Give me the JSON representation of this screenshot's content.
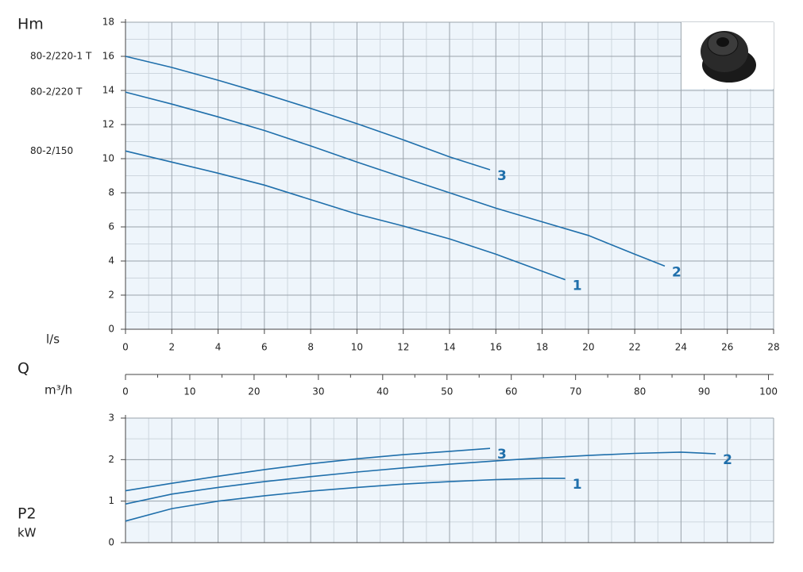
{
  "chart_data": [
    {
      "type": "line",
      "y_label": "Hm",
      "x_label": "l/s",
      "q_label": "Q",
      "x2_label": "m³/h",
      "xlim": [
        0,
        28
      ],
      "xticks": [
        0,
        2,
        4,
        6,
        8,
        10,
        12,
        14,
        16,
        18,
        20,
        22,
        24,
        26,
        28
      ],
      "ylim": [
        0,
        18
      ],
      "yticks": [
        0,
        2,
        4,
        6,
        8,
        10,
        12,
        14,
        16,
        18
      ],
      "x2lim": [
        0,
        100.8
      ],
      "x2ticks": [
        0,
        10,
        20,
        30,
        40,
        50,
        60,
        70,
        80,
        90,
        100
      ],
      "grid": true,
      "series": [
        {
          "name": "1",
          "model": "80-2/150",
          "color": "#1f6fab",
          "x": [
            0,
            2,
            4,
            6,
            8,
            10,
            12,
            14,
            16,
            18,
            19
          ],
          "values": [
            10.45,
            9.8,
            9.15,
            8.45,
            7.6,
            6.75,
            6.05,
            5.3,
            4.4,
            3.4,
            2.9
          ]
        },
        {
          "name": "2",
          "model": "80-2/220 T",
          "color": "#1f6fab",
          "x": [
            0,
            2,
            4,
            6,
            8,
            10,
            12,
            14,
            16,
            18,
            20,
            22,
            23.3
          ],
          "values": [
            13.9,
            13.2,
            12.45,
            11.65,
            10.75,
            9.8,
            8.9,
            8.0,
            7.1,
            6.3,
            5.5,
            4.4,
            3.7
          ]
        },
        {
          "name": "3",
          "model": "80-2/220-1 T",
          "color": "#1f6fab",
          "x": [
            0,
            2,
            4,
            6,
            8,
            10,
            12,
            14,
            15.75
          ],
          "values": [
            16,
            15.35,
            14.6,
            13.8,
            12.95,
            12.05,
            11.1,
            10.1,
            9.35
          ]
        }
      ]
    },
    {
      "type": "line",
      "y_label": "P2",
      "y_unit": "kW",
      "xlim": [
        0,
        28
      ],
      "ylim": [
        0,
        3
      ],
      "yticks": [
        0,
        1,
        2,
        3
      ],
      "grid": true,
      "series": [
        {
          "name": "1",
          "color": "#1f6fab",
          "x": [
            0,
            2,
            4,
            6,
            8,
            10,
            12,
            14,
            16,
            18,
            19
          ],
          "values": [
            0.52,
            0.82,
            1.0,
            1.13,
            1.24,
            1.33,
            1.41,
            1.47,
            1.52,
            1.55,
            1.55
          ]
        },
        {
          "name": "2",
          "color": "#1f6fab",
          "x": [
            0,
            2,
            4,
            6,
            8,
            10,
            12,
            14,
            16,
            18,
            20,
            22,
            24,
            25.5
          ],
          "values": [
            0.93,
            1.17,
            1.33,
            1.47,
            1.59,
            1.7,
            1.8,
            1.89,
            1.97,
            2.04,
            2.1,
            2.15,
            2.18,
            2.14
          ]
        },
        {
          "name": "3",
          "color": "#1f6fab",
          "x": [
            0,
            2,
            4,
            6,
            8,
            10,
            12,
            14,
            15.75
          ],
          "values": [
            1.25,
            1.43,
            1.6,
            1.76,
            1.9,
            2.02,
            2.12,
            2.2,
            2.27
          ]
        }
      ]
    }
  ]
}
